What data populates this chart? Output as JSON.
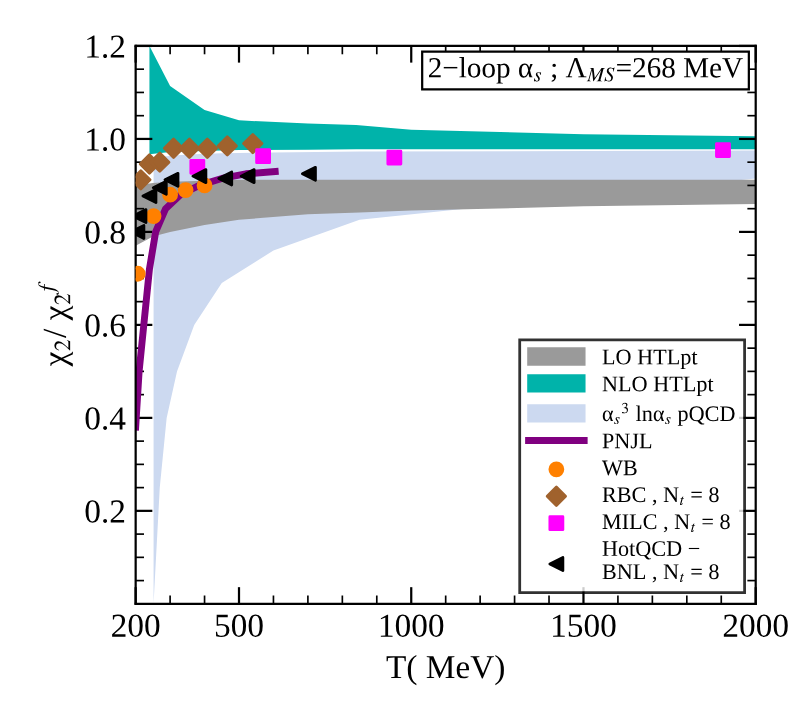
{
  "chart_data": {
    "type": "line",
    "title": "2−loop α$_{s}$ ; Λ$_{MS}$=268 MeV",
    "xlabel": "T( MeV)",
    "ylabel": "χ$_{2}$/ χ$_{2}$$^{f}$",
    "xlim": [
      200,
      2000
    ],
    "xticks": [
      200,
      500,
      1000,
      1500,
      2000
    ],
    "ylim": [
      0,
      1.2
    ],
    "yticks": [
      0.2,
      0.4,
      0.6,
      0.8,
      {
        "value": 1.0,
        "label": "1.0"
      },
      1.2
    ],
    "legend": "bottom right",
    "series": [
      {
        "name": "LO HTLpt",
        "type": "area",
        "color": "#9a9a9a",
        "x": [
          200,
          250,
          300,
          400,
          500,
          700,
          850,
          1000,
          1500,
          2000
        ],
        "values": [
          null,
          null,
          null,
          null,
          null,
          null,
          null,
          null,
          null,
          null
        ],
        "lower": [
          0.77,
          0.79,
          0.8,
          0.815,
          0.826,
          0.838,
          0.842,
          0.846,
          0.855,
          0.86
        ],
        "upper": [
          0.9,
          0.905,
          0.908,
          0.91,
          0.912,
          0.912,
          0.912,
          0.912,
          0.912,
          0.912
        ]
      },
      {
        "name": "NLO HTLpt",
        "type": "area",
        "color": "#00b3aa",
        "x": [
          240,
          300,
          400,
          500,
          700,
          840,
          1000,
          1500,
          2000
        ],
        "values": [
          null,
          null,
          null,
          null,
          null,
          null,
          null,
          null,
          null
        ],
        "lower": [
          0.967,
          0.972,
          0.974,
          0.976,
          0.977,
          0.978,
          0.978,
          0.978,
          0.978
        ],
        "upper": [
          1.2,
          1.114,
          1.062,
          1.04,
          1.033,
          1.03,
          1.02,
          1.01,
          1.006
        ]
      },
      {
        "name": "α$_{s}$$^{3}$ lnα$_{s}$ pQCD",
        "type": "area",
        "color": "#ccd9f0",
        "x": [
          252,
          270,
          290,
          320,
          370,
          450,
          600,
          850,
          2000
        ],
        "values": [
          null,
          null,
          null,
          null,
          null,
          null,
          null,
          null,
          null
        ],
        "lower": [
          0,
          0.25,
          0.4,
          0.5,
          0.6,
          0.69,
          0.76,
          0.826,
          0.915
        ],
        "upper": [
          0.96,
          0.962,
          0.963,
          0.965,
          0.967,
          0.969,
          0.971,
          0.973,
          0.975
        ]
      },
      {
        "name": "PNJL",
        "color": "#800080",
        "x": [
          200,
          210,
          225,
          240,
          258,
          287,
          330,
          385,
          450,
          520,
          605
        ],
        "values": [
          0.38,
          0.5,
          0.61,
          0.72,
          0.8,
          0.85,
          0.88,
          0.9,
          0.915,
          0.925,
          0.93
        ]
      },
      {
        "name": "WB",
        "type": "scatter",
        "marker": "circle",
        "color": "#ff8000",
        "x": [
          206,
          252,
          300,
          345,
          400
        ],
        "values": [
          0.71,
          0.834,
          0.88,
          0.89,
          0.9
        ]
      },
      {
        "name": "RBC , N$_{t}$ = 8",
        "type": "scatter",
        "marker": "diamond",
        "color": "#a0622d",
        "x": [
          215,
          240,
          270,
          310,
          356,
          408,
          466,
          540
        ],
        "values": [
          0.912,
          0.946,
          0.95,
          0.98,
          0.98,
          0.98,
          0.985,
          0.99
        ]
      },
      {
        "name": "MILC , N$_{t}$ = 8",
        "type": "scatter",
        "marker": "square",
        "color": "#ff00ff",
        "x": [
          379,
          570,
          951,
          1905
        ],
        "values": [
          0.94,
          0.963,
          0.96,
          0.976
        ]
      },
      {
        "name": "HotQCD −\nBNL , N$_{t}$ = 8",
        "type": "scatter",
        "marker": "triangle",
        "color": "#000000",
        "x": [
          205,
          211,
          240,
          270,
          304,
          385,
          460,
          525,
          703
        ],
        "values": [
          0.8,
          0.834,
          0.877,
          0.895,
          0.912,
          0.92,
          0.915,
          0.92,
          0.925
        ]
      }
    ]
  }
}
